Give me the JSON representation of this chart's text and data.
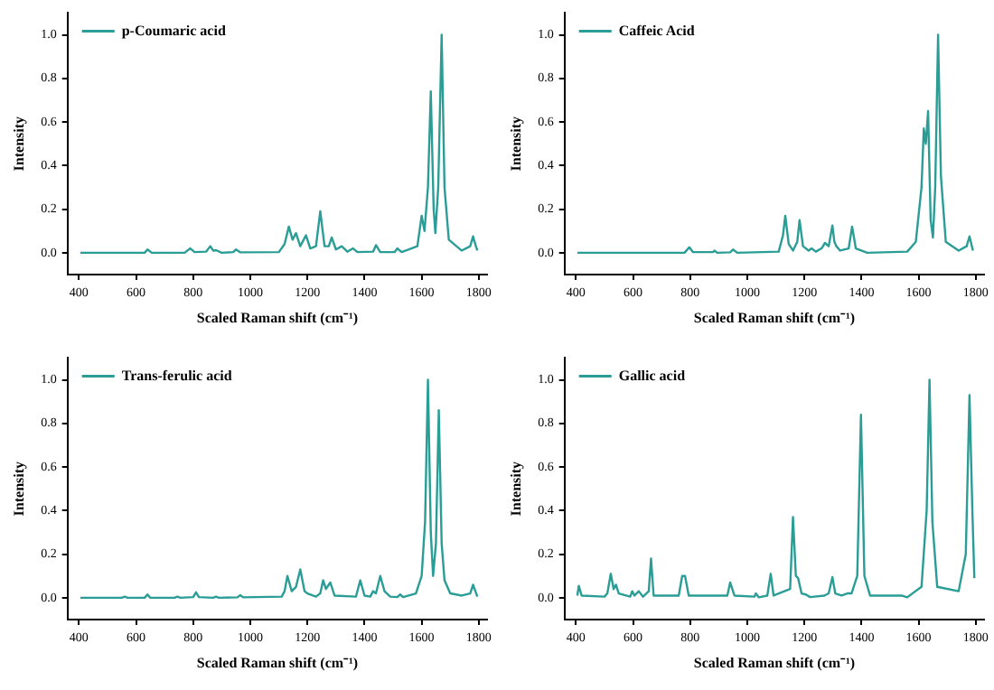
{
  "chart_data": [
    {
      "type": "line",
      "xlabel": "Scaled Raman shift (cm⁻¹)",
      "ylabel": "Intensity",
      "legend": "top left",
      "grid": false,
      "xlim": [
        360,
        1830
      ],
      "xticks": [
        400,
        600,
        800,
        1000,
        1200,
        1400,
        1600,
        1800
      ],
      "ylim": [
        -0.1,
        1.1
      ],
      "yticks": [
        {
          "value": 0,
          "label": "0.0"
        },
        {
          "value": 0.2,
          "label": "0.2"
        },
        {
          "value": 0.4,
          "label": "0.4"
        },
        {
          "value": 0.6,
          "label": "0.6"
        },
        {
          "value": 0.8,
          "label": "0.8"
        },
        {
          "value": 1,
          "label": "1.0"
        }
      ],
      "series": [
        {
          "name": "p-Coumaric acid",
          "color": "#2a9d96",
          "x": [
            405,
            600,
            630,
            640,
            655,
            770,
            790,
            805,
            845,
            860,
            870,
            880,
            900,
            940,
            950,
            965,
            1100,
            1120,
            1135,
            1148,
            1160,
            1175,
            1195,
            1210,
            1230,
            1245,
            1260,
            1275,
            1285,
            1300,
            1320,
            1340,
            1360,
            1375,
            1430,
            1440,
            1455,
            1505,
            1515,
            1530,
            1585,
            1600,
            1610,
            1622,
            1632,
            1642,
            1648,
            1658,
            1670,
            1680,
            1695,
            1740,
            1770,
            1780,
            1790,
            1795
          ],
          "values": [
            0,
            0,
            0,
            0.015,
            0,
            0,
            0.02,
            0.003,
            0.005,
            0.03,
            0.01,
            0.012,
            0,
            0.003,
            0.015,
            0.002,
            0.003,
            0.04,
            0.12,
            0.06,
            0.09,
            0.03,
            0.08,
            0.02,
            0.03,
            0.19,
            0.03,
            0.03,
            0.07,
            0.015,
            0.03,
            0.005,
            0.02,
            0.003,
            0.005,
            0.035,
            0.003,
            0.003,
            0.02,
            0.003,
            0.03,
            0.17,
            0.1,
            0.3,
            0.74,
            0.2,
            0.09,
            0.3,
            1.0,
            0.3,
            0.06,
            0.01,
            0.03,
            0.075,
            0.03,
            0.01
          ]
        }
      ]
    },
    {
      "type": "line",
      "xlabel": "Scaled Raman shift (cm⁻¹)",
      "ylabel": "Intensity",
      "legend": "top left",
      "grid": false,
      "xlim": [
        360,
        1830
      ],
      "xticks": [
        400,
        600,
        800,
        1000,
        1200,
        1400,
        1600,
        1800
      ],
      "ylim": [
        -0.1,
        1.1
      ],
      "yticks": [
        {
          "value": 0,
          "label": "0.0"
        },
        {
          "value": 0.2,
          "label": "0.2"
        },
        {
          "value": 0.4,
          "label": "0.4"
        },
        {
          "value": 0.6,
          "label": "0.6"
        },
        {
          "value": 0.8,
          "label": "0.8"
        },
        {
          "value": 1,
          "label": "1.0"
        }
      ],
      "series": [
        {
          "name": "Caffeic Acid",
          "color": "#2a9d96",
          "x": [
            405,
            780,
            797,
            810,
            880,
            885,
            895,
            940,
            950,
            965,
            1110,
            1125,
            1133,
            1145,
            1160,
            1175,
            1183,
            1195,
            1215,
            1225,
            1240,
            1260,
            1272,
            1285,
            1298,
            1305,
            1312,
            1325,
            1355,
            1367,
            1380,
            1420,
            1560,
            1590,
            1610,
            1618,
            1625,
            1633,
            1642,
            1650,
            1658,
            1668,
            1678,
            1695,
            1740,
            1768,
            1778,
            1790
          ],
          "values": [
            0,
            0,
            0.025,
            0.003,
            0.003,
            0.01,
            0,
            0.002,
            0.015,
            0,
            0.005,
            0.08,
            0.17,
            0.04,
            0.01,
            0.05,
            0.15,
            0.03,
            0.01,
            0.02,
            0.005,
            0.02,
            0.045,
            0.03,
            0.125,
            0.05,
            0.03,
            0.01,
            0.02,
            0.12,
            0.02,
            0,
            0.005,
            0.05,
            0.3,
            0.57,
            0.5,
            0.65,
            0.15,
            0.07,
            0.3,
            1.0,
            0.35,
            0.05,
            0.01,
            0.03,
            0.075,
            0.01
          ]
        }
      ]
    },
    {
      "type": "line",
      "xlabel": "Scaled Raman shift (cm⁻¹)",
      "ylabel": "Intensity",
      "legend": "top left",
      "grid": false,
      "xlim": [
        360,
        1830
      ],
      "xticks": [
        400,
        600,
        800,
        1000,
        1200,
        1400,
        1600,
        1800
      ],
      "ylim": [
        -0.1,
        1.1
      ],
      "yticks": [
        {
          "value": 0,
          "label": "0.0"
        },
        {
          "value": 0.2,
          "label": "0.2"
        },
        {
          "value": 0.4,
          "label": "0.4"
        },
        {
          "value": 0.6,
          "label": "0.6"
        },
        {
          "value": 0.8,
          "label": "0.8"
        },
        {
          "value": 1,
          "label": "1.0"
        }
      ],
      "series": [
        {
          "name": "Trans-ferulic acid",
          "color": "#2a9d96",
          "x": [
            405,
            550,
            560,
            570,
            630,
            640,
            650,
            735,
            745,
            755,
            800,
            810,
            820,
            870,
            880,
            890,
            955,
            965,
            975,
            1110,
            1120,
            1130,
            1145,
            1160,
            1175,
            1190,
            1200,
            1230,
            1245,
            1255,
            1265,
            1280,
            1295,
            1370,
            1385,
            1400,
            1420,
            1430,
            1440,
            1455,
            1470,
            1490,
            1515,
            1525,
            1535,
            1580,
            1600,
            1612,
            1622,
            1632,
            1640,
            1650,
            1660,
            1670,
            1680,
            1700,
            1740,
            1770,
            1780,
            1795
          ],
          "values": [
            0,
            0,
            0.005,
            0,
            0,
            0.015,
            0,
            0,
            0.005,
            0,
            0.003,
            0.025,
            0.003,
            0,
            0.005,
            0,
            0.002,
            0.012,
            0.002,
            0.005,
            0.03,
            0.1,
            0.03,
            0.05,
            0.13,
            0.03,
            0.02,
            0.005,
            0.02,
            0.08,
            0.04,
            0.07,
            0.01,
            0.005,
            0.08,
            0.01,
            0.005,
            0.03,
            0.02,
            0.1,
            0.03,
            0.005,
            0.003,
            0.015,
            0.003,
            0.02,
            0.1,
            0.35,
            1.0,
            0.3,
            0.1,
            0.25,
            0.86,
            0.25,
            0.08,
            0.02,
            0.01,
            0.02,
            0.06,
            0.005
          ]
        }
      ]
    },
    {
      "type": "line",
      "xlabel": "Scaled Raman shift (cm⁻¹)",
      "ylabel": "Intensity",
      "legend": "top left",
      "grid": false,
      "xlim": [
        360,
        1830
      ],
      "xticks": [
        400,
        600,
        800,
        1000,
        1200,
        1400,
        1600,
        1800
      ],
      "ylim": [
        -0.1,
        1.1
      ],
      "yticks": [
        {
          "value": 0,
          "label": "0.0"
        },
        {
          "value": 0.2,
          "label": "0.2"
        },
        {
          "value": 0.4,
          "label": "0.4"
        },
        {
          "value": 0.6,
          "label": "0.6"
        },
        {
          "value": 0.8,
          "label": "0.8"
        },
        {
          "value": 1,
          "label": "1.0"
        }
      ],
      "series": [
        {
          "name": "Gallic acid",
          "color": "#2a9d96",
          "x": [
            405,
            410,
            420,
            500,
            510,
            522,
            532,
            540,
            550,
            590,
            597,
            605,
            620,
            635,
            655,
            663,
            672,
            760,
            772,
            782,
            795,
            930,
            940,
            955,
            1025,
            1030,
            1040,
            1070,
            1082,
            1092,
            1150,
            1160,
            1170,
            1178,
            1190,
            1205,
            1220,
            1270,
            1285,
            1298,
            1308,
            1330,
            1350,
            1365,
            1385,
            1398,
            1410,
            1430,
            1540,
            1560,
            1610,
            1628,
            1638,
            1648,
            1665,
            1740,
            1765,
            1778,
            1788,
            1795
          ],
          "values": [
            0.01,
            0.055,
            0.01,
            0.005,
            0.02,
            0.11,
            0.04,
            0.06,
            0.02,
            0.005,
            0.03,
            0.01,
            0.03,
            0.005,
            0.03,
            0.18,
            0.01,
            0.01,
            0.1,
            0.1,
            0.01,
            0.01,
            0.07,
            0.01,
            0.005,
            0.02,
            0.002,
            0.01,
            0.11,
            0.01,
            0.04,
            0.37,
            0.1,
            0.09,
            0.02,
            0.015,
            0.003,
            0.01,
            0.02,
            0.095,
            0.02,
            0.01,
            0.02,
            0.02,
            0.1,
            0.84,
            0.1,
            0.01,
            0.01,
            0.002,
            0.05,
            0.4,
            1.0,
            0.35,
            0.05,
            0.03,
            0.2,
            0.93,
            0.4,
            0.09
          ]
        }
      ]
    }
  ]
}
